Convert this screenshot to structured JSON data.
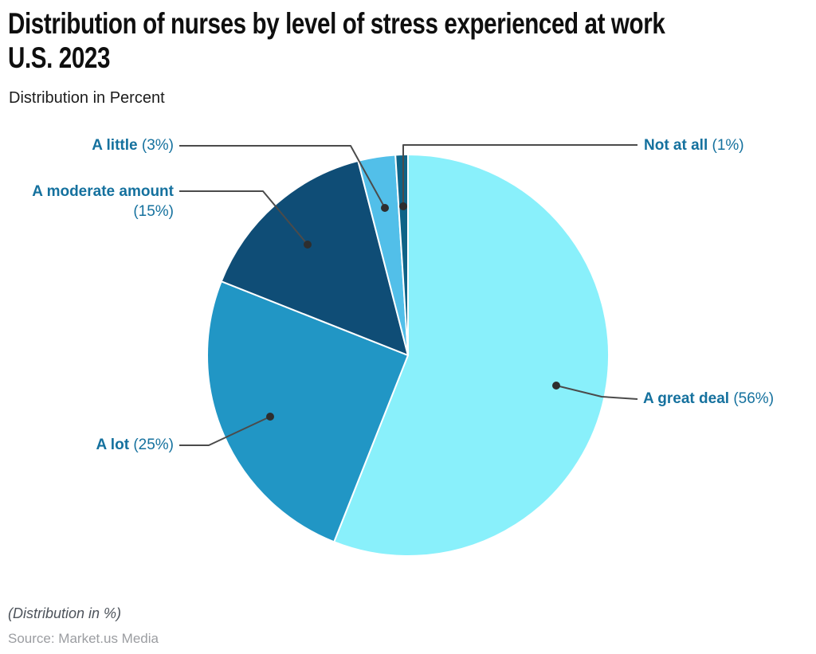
{
  "header": {
    "title_line1": "Distribution of nurses by level of stress experienced at work",
    "title_line2": "U.S. 2023",
    "subtitle": "Distribution in Percent"
  },
  "callouts": [
    {
      "name": "A great deal",
      "pct": "(56%)"
    },
    {
      "name": "A lot",
      "pct": "(25%)"
    },
    {
      "name": "A moderate amount",
      "pct": "(15%)"
    },
    {
      "name": "A little",
      "pct": "(3%)"
    },
    {
      "name": "Not at all",
      "pct": "(1%)"
    }
  ],
  "footer": {
    "note": "(Distribution in %)",
    "source": "Source: Market.us Media"
  },
  "chart_data": {
    "type": "pie",
    "title": "Distribution of nurses by level of stress experienced at work U.S. 2023",
    "subtitle": "Distribution in Percent",
    "categories": [
      "A great deal",
      "A lot",
      "A moderate amount",
      "A little",
      "Not at all"
    ],
    "values": [
      56,
      25,
      15,
      3,
      1
    ],
    "unit": "percent",
    "colors": [
      "#89F0FB",
      "#2196C5",
      "#0F4D76",
      "#52BFE9",
      "#0E6387"
    ],
    "start_angle_deg": 0,
    "direction": "clockwise",
    "slice_border_color": "#FFFFFF",
    "leader_line_color": "#4B4B4B",
    "leader_dot_color": "#2E2E2E",
    "label_color": "#15719E",
    "legend_position": "callouts",
    "note": "(Distribution in %)",
    "source": "Source: Market.us Media"
  }
}
